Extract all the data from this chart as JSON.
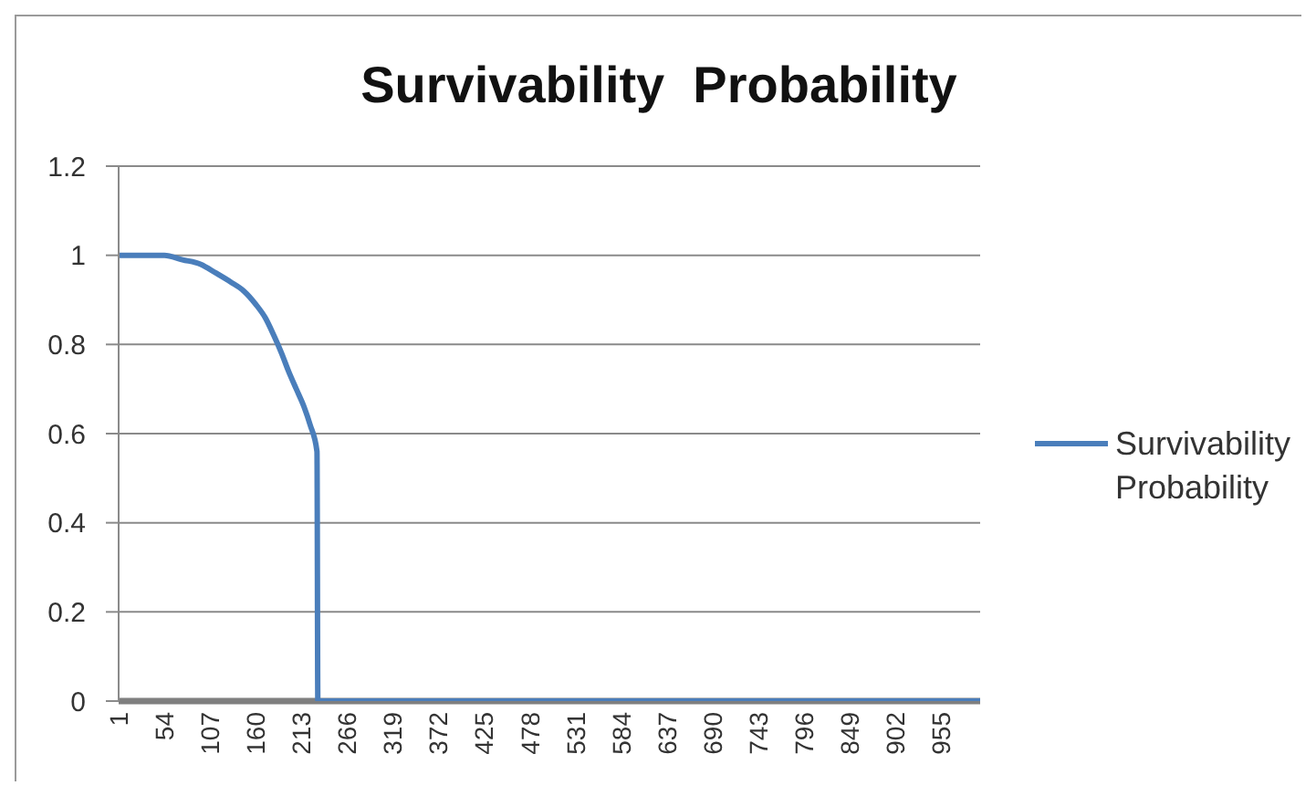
{
  "chart_data": {
    "type": "line",
    "title": "Survivability  Probability",
    "x": [
      1,
      33,
      54,
      75,
      96,
      114,
      131,
      146,
      160,
      171,
      181,
      190,
      198,
      207,
      216,
      223,
      231,
      232,
      300,
      400,
      500,
      600,
      700,
      800,
      900,
      1000
    ],
    "series": [
      {
        "name": "Survivability Probability",
        "color": "#4a7ebb",
        "values": [
          1,
          1,
          1,
          0.99,
          0.98,
          0.96,
          0.94,
          0.92,
          0.89,
          0.86,
          0.82,
          0.78,
          0.74,
          0.7,
          0.66,
          0.62,
          0.56,
          0,
          0,
          0,
          0,
          0,
          0,
          0,
          0,
          0
        ]
      }
    ],
    "xlim": [
      1,
      1000
    ],
    "xticks": [
      1,
      54,
      107,
      160,
      213,
      266,
      319,
      372,
      425,
      478,
      531,
      584,
      637,
      690,
      743,
      796,
      849,
      902,
      955
    ],
    "ylim": [
      0,
      1.2
    ],
    "yticks": [
      0,
      0.2,
      0.4,
      0.6,
      0.8,
      1,
      1.2
    ],
    "grid": "y",
    "legend": "right",
    "marker": "none",
    "line_style": "solid"
  }
}
